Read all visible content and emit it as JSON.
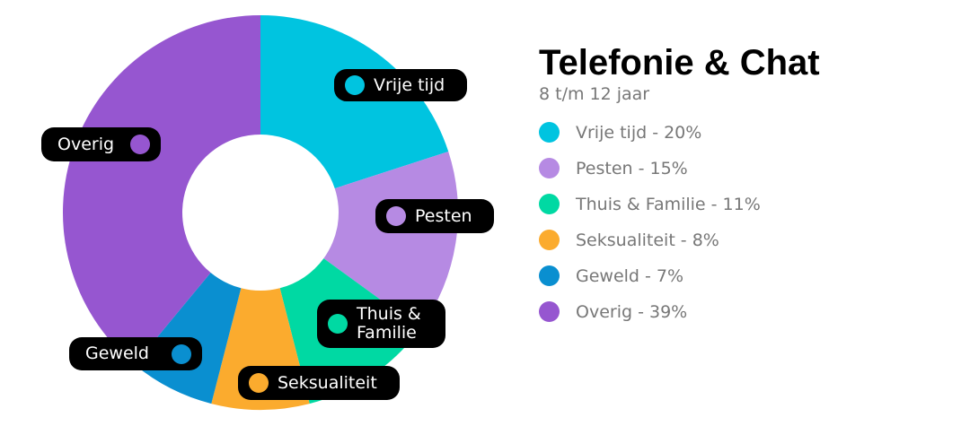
{
  "chart_data": {
    "type": "donut",
    "title": "Telefonie & Chat",
    "subtitle": "8 t/m 12 jaar",
    "categories": [
      "Vrije tijd",
      "Pesten",
      "Thuis & Familie",
      "Seksualiteit",
      "Geweld",
      "Overig"
    ],
    "values": [
      20,
      15,
      11,
      8,
      7,
      39
    ],
    "value_labels": [
      "Vrije tijd - 20%",
      "Pesten - 15%",
      "Thuis & Familie - 11%",
      "Seksualiteit - 8%",
      "Geweld - 7%",
      "Overig - 39%"
    ],
    "colors": [
      "#00c4e0",
      "#b68ae3",
      "#00d9a3",
      "#fbab2e",
      "#0a8fd0",
      "#9656d0"
    ]
  }
}
